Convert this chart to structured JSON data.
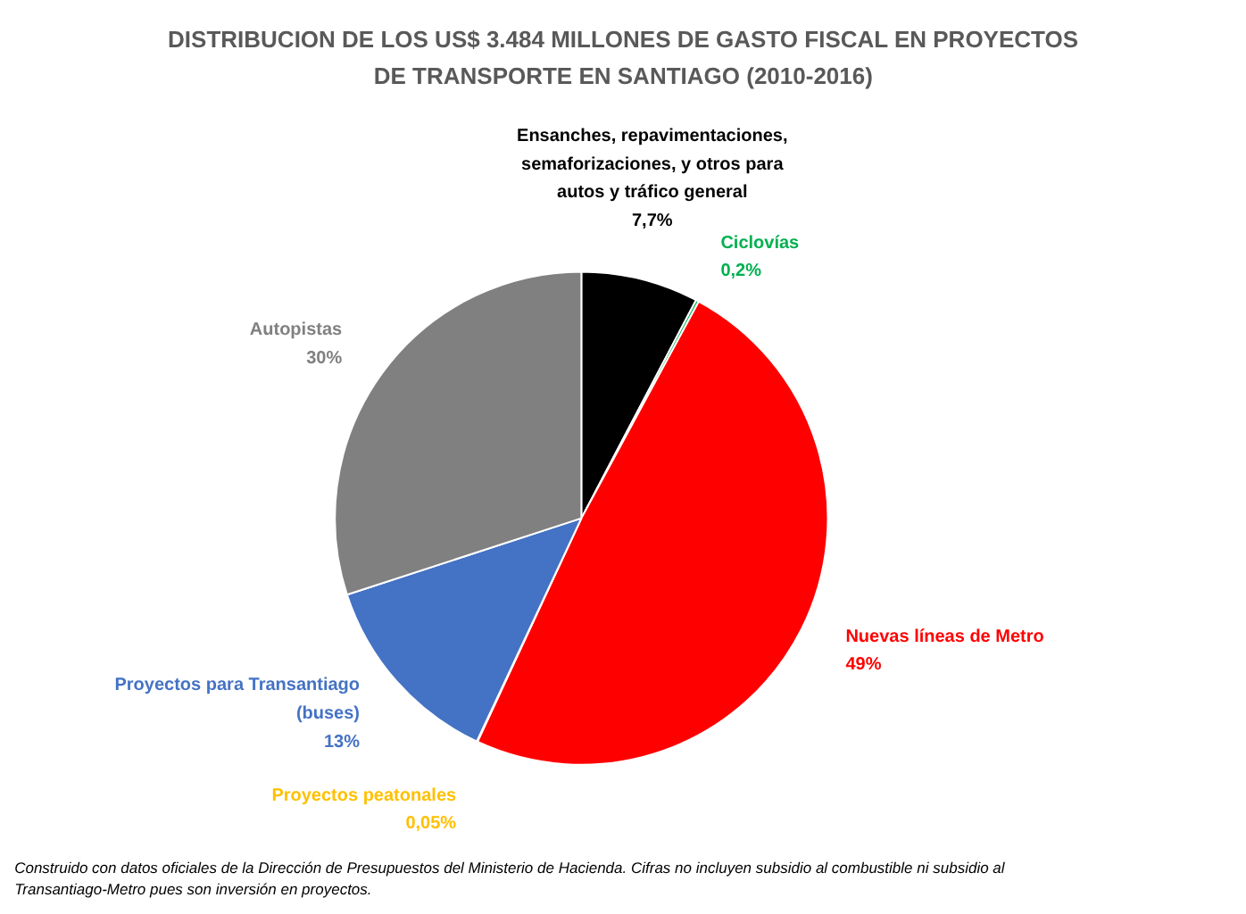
{
  "chart_data": {
    "type": "pie",
    "title": "DISTRIBUCION DE LOS US$ 3.484 MILLONES DE GASTO FISCAL EN PROYECTOS DE TRANSPORTE EN SANTIAGO (2010-2016)",
    "categories": [
      "Ensanches, repavimentaciones, semaforizaciones, y otros para autos y tráfico general",
      "Ciclovías",
      "Nuevas líneas de Metro",
      "Proyectos peatonales",
      "Proyectos para Transantiago (buses)",
      "Autopistas"
    ],
    "values": [
      7.7,
      0.2,
      49,
      0.05,
      13,
      30
    ],
    "value_labels": [
      "7,7%",
      "0,2%",
      "49%",
      "0,05%",
      "13%",
      "30%"
    ],
    "colors": [
      "#000000",
      "#00b050",
      "#ff0000",
      "#ffc000",
      "#4472c4",
      "#808080"
    ],
    "annotations": [
      "Construido con datos oficiales de la Dirección de Presupuestos del Ministerio de Hacienda. Cifras no incluyen subsidio al combustible ni subsidio al Transantiago-Metro pues son inversión en proyectos."
    ]
  }
}
